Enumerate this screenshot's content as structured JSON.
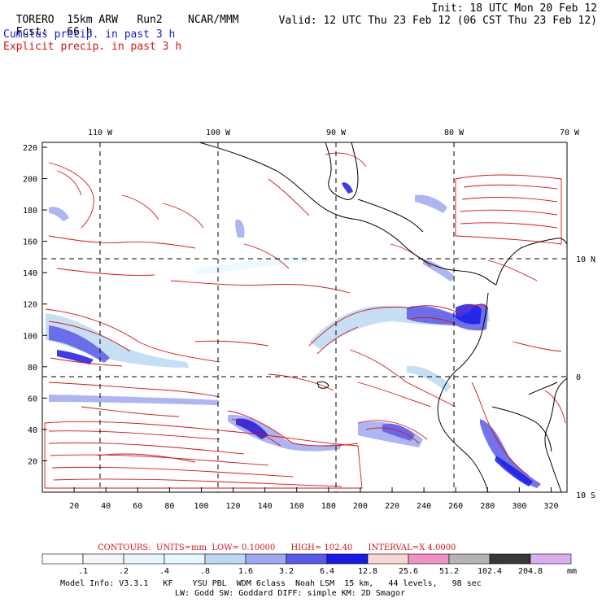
{
  "header": {
    "model": "TORERO",
    "resolution": "15km ARW",
    "run": "Run2",
    "org": "NCAR/MMM",
    "init": "Init: 18 UTC Mon 20 Feb 12",
    "fcst_label": "Fcst:",
    "fcst_value": "66 h",
    "valid": "Valid: 12 UTC Thu 23 Feb 12 (06 CST Thu 23 Feb 12)",
    "cumulus": "Cumulus precip. in past 3 h",
    "explicit": "Explicit precip. in past 3 h"
  },
  "colors": {
    "cumulus": "#1a1ad0",
    "explicit": "#d81414",
    "coast": "#000000",
    "grid": "#000000"
  },
  "map": {
    "top_lon_labels": [
      "110 W",
      "100 W",
      "90 W",
      "80 W",
      "70 W"
    ],
    "right_lat_labels": [
      "10 N",
      "0",
      "10 S"
    ],
    "y_ticks": [
      "220",
      "200",
      "180",
      "160",
      "140",
      "120",
      "100",
      "80",
      "60",
      "40",
      "20"
    ],
    "x_ticks": [
      "20",
      "40",
      "60",
      "80",
      "100",
      "120",
      "140",
      "160",
      "180",
      "200",
      "220",
      "240",
      "260",
      "280",
      "300",
      "320"
    ]
  },
  "contour_info": {
    "prefix": "CONTOURS:",
    "units": "UNITS=mm",
    "low": "LOW= 0.10000",
    "high": "HIGH= 102.40",
    "interval": "INTERVAL=X 4.0000"
  },
  "colorbar": {
    "labels": [
      ".1",
      ".2",
      ".4",
      ".8",
      "1.6",
      "3.2",
      "6.4",
      "12.8",
      "25.6",
      "51.2",
      "102.4",
      "204.8"
    ],
    "colors": [
      "#ffffff",
      "#f4f6fb",
      "#e9f4fb",
      "#e6f9ff",
      "#bcd9f2",
      "#9fa8f0",
      "#5a5ae8",
      "#1a1ae6",
      "#f8d6d6",
      "#f092c4",
      "#b4b4b4",
      "#383838",
      "#d8aef0"
    ],
    "unit": "mm"
  },
  "footer": {
    "line1": "Model Info: V3.3.1   KF    YSU PBL  WDM 6class  Noah LSM  15 km,   44 levels,   98 sec",
    "line2": "LW: Godd SW: Goddard DIFF: simple KM: 2D Smagor"
  }
}
